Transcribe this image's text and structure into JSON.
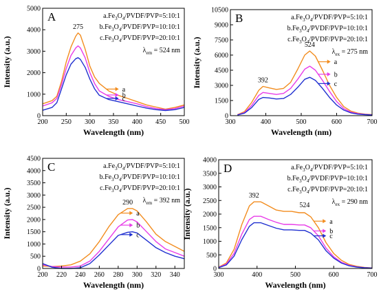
{
  "colors": {
    "a": "#F28C1E",
    "b": "#E83BE8",
    "c": "#1F2FD0",
    "axis": "#000000"
  },
  "chart_data": [
    {
      "type": "line",
      "panel_label": "A",
      "xlabel": "Wavelength (nm)",
      "ylabel": "Intensity (a.u.)",
      "xlim": [
        200,
        500
      ],
      "ylim": [
        0,
        5000
      ],
      "xticks": [
        200,
        250,
        300,
        350,
        400,
        450,
        500
      ],
      "yticks": [
        0,
        1000,
        2000,
        3000,
        4000,
        5000
      ],
      "legend": [
        {
          "prefix": "a.Fe",
          "mid": "O",
          "suffix": "/PVDF/PVP=5:10:1"
        },
        {
          "prefix": "b.Fe",
          "mid": "O",
          "suffix": "/PVDF/PVP=10:10:1"
        },
        {
          "prefix": "c.Fe",
          "mid": "O",
          "suffix": "/PVDF/PVP=20:10:1"
        }
      ],
      "excitation_note": {
        "symbol": "λ",
        "sub": "em",
        "text": "= 524 nm"
      },
      "peak_labels": [
        {
          "x": 275,
          "y": 3850,
          "text": "275"
        }
      ],
      "series": [
        {
          "name": "a",
          "x": [
            200,
            220,
            230,
            240,
            250,
            260,
            270,
            275,
            280,
            290,
            300,
            310,
            320,
            340,
            360,
            380,
            400,
            420,
            440,
            460,
            480,
            500
          ],
          "values": [
            550,
            700,
            900,
            1600,
            2500,
            3200,
            3700,
            3850,
            3750,
            3100,
            2300,
            1800,
            1500,
            1150,
            950,
            800,
            650,
            500,
            400,
            300,
            380,
            500
          ]
        },
        {
          "name": "b",
          "x": [
            200,
            220,
            230,
            240,
            250,
            260,
            270,
            275,
            280,
            290,
            300,
            310,
            320,
            340,
            360,
            380,
            400,
            420,
            440,
            460,
            480,
            500
          ],
          "values": [
            450,
            600,
            800,
            1450,
            2200,
            2800,
            3150,
            3250,
            3150,
            2700,
            2000,
            1500,
            1150,
            900,
            750,
            650,
            550,
            420,
            330,
            280,
            330,
            450
          ]
        },
        {
          "name": "c",
          "x": [
            200,
            220,
            230,
            240,
            250,
            260,
            270,
            275,
            280,
            290,
            300,
            310,
            320,
            340,
            360,
            380,
            400,
            420,
            440,
            460,
            480,
            500
          ],
          "values": [
            250,
            380,
            600,
            1250,
            1900,
            2400,
            2650,
            2700,
            2620,
            2250,
            1700,
            1250,
            950,
            750,
            650,
            550,
            450,
            350,
            280,
            240,
            280,
            380
          ]
        }
      ],
      "curve_labels": [
        "a",
        "b",
        "c"
      ]
    },
    {
      "type": "line",
      "panel_label": "B",
      "xlabel": "Wavelength (nm)",
      "ylabel": "Intensity (a.u.)",
      "xlim": [
        300,
        700
      ],
      "ylim": [
        0,
        10500
      ],
      "xticks": [
        300,
        400,
        500,
        600,
        700
      ],
      "yticks": [
        0,
        1500,
        3000,
        4500,
        6000,
        7500,
        9000,
        10500
      ],
      "legend": [
        {
          "prefix": "a.Fe",
          "mid": "O",
          "suffix": "/PVDF/PVP=5:10:1"
        },
        {
          "prefix": "b.Fe",
          "mid": "O",
          "suffix": "/PVDF/PVP=10:10:1"
        },
        {
          "prefix": "c.Fe",
          "mid": "O",
          "suffix": "/PVDF/PVP=20:10:1"
        }
      ],
      "excitation_note": {
        "symbol": "λ",
        "sub": "ex",
        "text": "= 275 nm"
      },
      "peak_labels": [
        {
          "x": 392,
          "y": 2900,
          "text": "392"
        },
        {
          "x": 524,
          "y": 6400,
          "text": "524"
        }
      ],
      "series": [
        {
          "name": "a",
          "x": [
            320,
            340,
            360,
            380,
            392,
            410,
            430,
            450,
            470,
            490,
            510,
            524,
            540,
            560,
            580,
            600,
            620,
            640,
            660,
            680,
            700
          ],
          "values": [
            100,
            400,
            1300,
            2500,
            2900,
            2750,
            2600,
            2700,
            3300,
            4600,
            6000,
            6400,
            5900,
            4500,
            3000,
            1800,
            900,
            450,
            250,
            150,
            100
          ]
        },
        {
          "name": "b",
          "x": [
            320,
            340,
            360,
            380,
            392,
            410,
            430,
            450,
            470,
            490,
            510,
            524,
            540,
            560,
            580,
            600,
            620,
            640,
            660,
            680,
            700
          ],
          "values": [
            80,
            300,
            1000,
            2000,
            2300,
            2200,
            2100,
            2200,
            2700,
            3600,
            4600,
            4900,
            4500,
            3500,
            2400,
            1400,
            700,
            350,
            200,
            120,
            80
          ]
        },
        {
          "name": "c",
          "x": [
            320,
            340,
            360,
            380,
            392,
            410,
            430,
            450,
            470,
            490,
            510,
            524,
            540,
            560,
            580,
            600,
            620,
            640,
            660,
            680,
            700
          ],
          "values": [
            60,
            250,
            800,
            1600,
            1800,
            1750,
            1650,
            1700,
            2100,
            2800,
            3600,
            3800,
            3500,
            2700,
            1800,
            1050,
            550,
            280,
            150,
            100,
            60
          ]
        }
      ],
      "curve_labels": [
        "a",
        "b",
        "c"
      ]
    },
    {
      "type": "line",
      "panel_label": "C",
      "xlabel": "Wavelength (nm)",
      "ylabel": "Intensity (a.u.)",
      "xlim": [
        200,
        350
      ],
      "ylim": [
        0,
        4500
      ],
      "xticks": [
        200,
        220,
        240,
        260,
        280,
        300,
        320,
        340
      ],
      "yticks": [
        0,
        500,
        1000,
        1500,
        2000,
        2500,
        3000,
        3500,
        4000,
        4500
      ],
      "legend": [
        {
          "prefix": "a.Fe",
          "mid": "O",
          "suffix": "/PVDF/PVP=5:10:1"
        },
        {
          "prefix": "b.Fe",
          "mid": "O",
          "suffix": "/PVDF/PVP=10:10:1"
        },
        {
          "prefix": "c.Fe",
          "mid": "O",
          "suffix": "/PVDF/PVP=20:10:1"
        }
      ],
      "excitation_note": {
        "symbol": "λ",
        "sub": "em",
        "text": "= 392 nm"
      },
      "peak_labels": [
        {
          "x": 290,
          "y": 2450,
          "text": "290"
        }
      ],
      "series": [
        {
          "name": "a",
          "x": [
            200,
            210,
            220,
            230,
            240,
            250,
            260,
            270,
            280,
            290,
            295,
            300,
            310,
            320,
            330,
            340,
            350
          ],
          "values": [
            100,
            80,
            100,
            150,
            300,
            600,
            1100,
            1700,
            2200,
            2450,
            2450,
            2350,
            1900,
            1400,
            1100,
            900,
            700
          ]
        },
        {
          "name": "b",
          "x": [
            200,
            210,
            220,
            230,
            240,
            250,
            260,
            270,
            280,
            290,
            295,
            300,
            310,
            320,
            330,
            340,
            350
          ],
          "values": [
            150,
            80,
            60,
            60,
            100,
            300,
            700,
            1200,
            1700,
            1980,
            2000,
            1900,
            1500,
            1100,
            800,
            650,
            500
          ]
        },
        {
          "name": "c",
          "x": [
            200,
            210,
            220,
            230,
            240,
            250,
            260,
            270,
            280,
            290,
            295,
            300,
            310,
            320,
            330,
            340,
            350
          ],
          "values": [
            200,
            50,
            0,
            0,
            30,
            200,
            550,
            950,
            1350,
            1480,
            1500,
            1450,
            1150,
            850,
            650,
            500,
            400
          ]
        }
      ],
      "curve_labels": [
        "a",
        "b",
        "c"
      ]
    },
    {
      "type": "line",
      "panel_label": "D",
      "xlabel": "Wavelength (nm)",
      "ylabel": "Intensity (a.u.)",
      "xlim": [
        300,
        700
      ],
      "ylim": [
        0,
        4000
      ],
      "xticks": [
        300,
        400,
        500,
        600,
        700
      ],
      "yticks": [
        0,
        500,
        1000,
        1500,
        2000,
        2500,
        3000,
        3500,
        4000
      ],
      "legend": [
        {
          "prefix": "a.Fe",
          "mid": "O",
          "suffix": "/PVDF/PVP=5:10:1"
        },
        {
          "prefix": "b.Fe",
          "mid": "O",
          "suffix": "/PVDF/PVP=10:10:1"
        },
        {
          "prefix": "c.Fe",
          "mid": "O",
          "suffix": "/PVDF/PVP=20:10:1"
        }
      ],
      "excitation_note": {
        "symbol": "λ",
        "sub": "ex",
        "text": "= 290 nm"
      },
      "peak_labels": [
        {
          "x": 392,
          "y": 2450,
          "text": "392"
        },
        {
          "x": 524,
          "y": 2100,
          "text": "524"
        }
      ],
      "series": [
        {
          "name": "a",
          "x": [
            300,
            320,
            340,
            360,
            380,
            392,
            410,
            430,
            450,
            470,
            490,
            510,
            524,
            540,
            560,
            580,
            600,
            620,
            640,
            660,
            680,
            700
          ],
          "values": [
            50,
            200,
            700,
            1600,
            2300,
            2450,
            2450,
            2300,
            2150,
            2100,
            2100,
            2050,
            2050,
            1900,
            1500,
            950,
            550,
            300,
            150,
            80,
            40,
            20
          ]
        },
        {
          "name": "b",
          "x": [
            300,
            320,
            340,
            360,
            380,
            392,
            410,
            430,
            450,
            470,
            490,
            510,
            524,
            540,
            560,
            580,
            600,
            620,
            640,
            660,
            680,
            700
          ],
          "values": [
            40,
            160,
            550,
            1250,
            1800,
            1920,
            1920,
            1800,
            1700,
            1620,
            1620,
            1600,
            1600,
            1500,
            1200,
            750,
            430,
            230,
            120,
            60,
            30,
            15
          ]
        },
        {
          "name": "c",
          "x": [
            300,
            320,
            340,
            360,
            380,
            392,
            410,
            430,
            450,
            470,
            490,
            510,
            524,
            540,
            560,
            580,
            600,
            620,
            640,
            660,
            680,
            700
          ],
          "values": [
            30,
            130,
            450,
            1050,
            1550,
            1680,
            1680,
            1580,
            1480,
            1420,
            1420,
            1400,
            1400,
            1300,
            1050,
            650,
            380,
            200,
            100,
            50,
            25,
            12
          ]
        }
      ],
      "curve_labels": [
        "a",
        "b",
        "c"
      ]
    }
  ]
}
